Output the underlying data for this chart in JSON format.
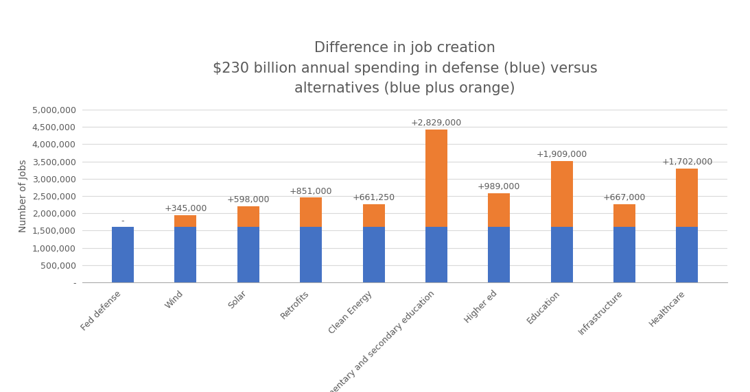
{
  "categories": [
    "Fed defense",
    "Wind",
    "Solar",
    "Retrofits",
    "Clean Energy",
    "Elementary and secondary education",
    "Higher ed",
    "Education",
    "Infrastructure",
    "Healthcare"
  ],
  "blue_values": [
    1600000,
    1600000,
    1600000,
    1600000,
    1600000,
    1600000,
    1600000,
    1600000,
    1600000,
    1600000
  ],
  "orange_values": [
    0,
    345000,
    598000,
    851000,
    661250,
    2829000,
    989000,
    1909000,
    667000,
    1702000
  ],
  "annotations": [
    "-",
    "+345,000",
    "+598,000",
    "+851,000",
    "+661,250",
    "+2,829,000",
    "+989,000",
    "+1,909,000",
    "+667,000",
    "+1,702,000"
  ],
  "title_line1": "Difference in job creation",
  "title_line2": "$230 billion annual spending in defense (blue) versus",
  "title_line3": "alternatives (blue plus orange)",
  "ylabel": "Number of Jobs",
  "blue_color": "#4472C4",
  "orange_color": "#ED7D31",
  "ylim": [
    0,
    5000000
  ],
  "yticks": [
    0,
    500000,
    1000000,
    1500000,
    2000000,
    2500000,
    3000000,
    3500000,
    4000000,
    4500000,
    5000000
  ],
  "ytick_labels": [
    "-",
    "500,000",
    "1,000,000",
    "1,500,000",
    "2,000,000",
    "2,500,000",
    "3,000,000",
    "3,500,000",
    "4,000,000",
    "4,500,000",
    "5,000,000"
  ],
  "background_color": "#ffffff",
  "title_color": "#595959",
  "annotation_color": "#595959",
  "axis_label_color": "#595959",
  "tick_color": "#595959",
  "grid_color": "#d9d9d9",
  "bar_width": 0.35,
  "annotation_fontsize": 9,
  "title_fontsize": 15,
  "ylabel_fontsize": 10,
  "tick_fontsize": 9
}
